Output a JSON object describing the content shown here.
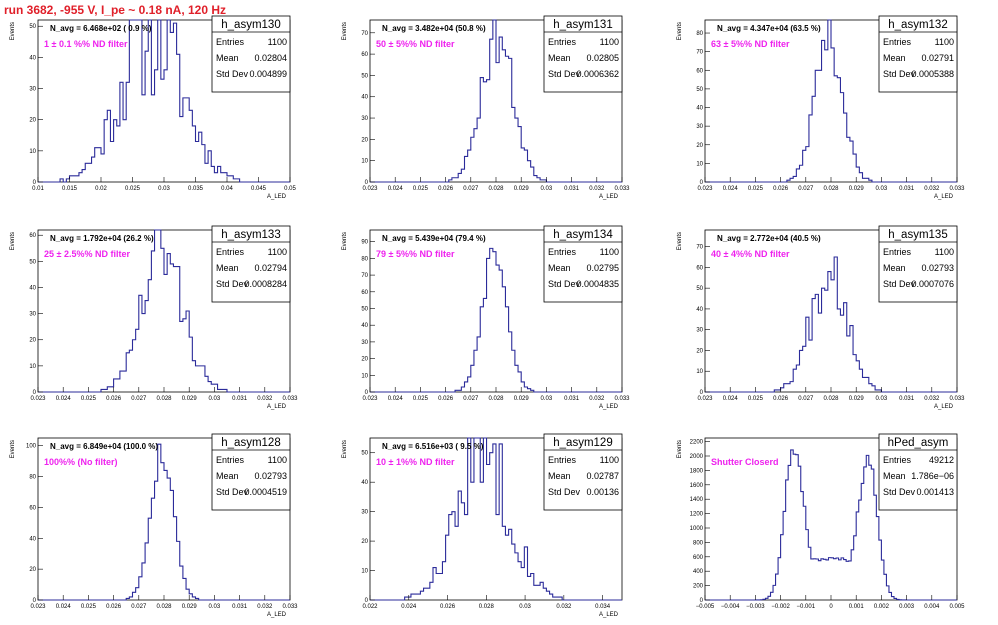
{
  "header": {
    "title": "run 3682,  -955 V, I_pe ~ 0.18 nA, 120 Hz"
  },
  "colors": {
    "histogram_line": "#2b2b9a",
    "filter_label": "#ee22ee",
    "title_text": "#e0202a"
  },
  "stat_labels": {
    "entries": "Entries",
    "mean": "Mean",
    "std_dev": "Std Dev"
  },
  "chart_data": [
    {
      "type": "histogram",
      "name": "h_asym130",
      "navg": "N_avg = 6.468e+02 ( 0.9 %)",
      "filter": "1 ± 0.1 %% ND filter",
      "entries": "1100",
      "mean": "0.02804",
      "std_dev": "0.004899",
      "ylabel": "Events",
      "xlabel": "A_LED",
      "xlim": [
        0.01,
        0.05
      ],
      "ylim": [
        0,
        52
      ],
      "xticks": [
        0.01,
        0.015,
        0.02,
        0.025,
        0.03,
        0.035,
        0.04,
        0.045,
        0.05
      ],
      "xtick_labels": [
        "0.01",
        "0.015",
        "0.02",
        "0.025",
        "0.03",
        "0.035",
        "0.04",
        "0.045",
        "0.05"
      ],
      "yticks": [
        0,
        10,
        20,
        30,
        40,
        50
      ],
      "ytick_labels": [
        "0",
        "10",
        "20",
        "30",
        "40",
        "50"
      ],
      "mu": 0.02804,
      "sigma": 0.004899,
      "peak": 49,
      "noise": 0.45,
      "seed": 11
    },
    {
      "type": "histogram",
      "name": "h_asym131",
      "navg": "N_avg = 3.482e+04 (50.8 %)",
      "filter": "50 ± 5%% ND filter",
      "entries": "1100",
      "mean": "0.02805",
      "std_dev": "0.0006362",
      "ylabel": "Events",
      "xlabel": "A_LED",
      "xlim": [
        0.023,
        0.033
      ],
      "ylim": [
        0,
        76
      ],
      "xticks": [
        0.023,
        0.024,
        0.025,
        0.026,
        0.027,
        0.028,
        0.029,
        0.03,
        0.031,
        0.032,
        0.033
      ],
      "xtick_labels": [
        "0.023",
        "0.024",
        "0.025",
        "0.026",
        "0.027",
        "0.028",
        "0.029",
        "0.03",
        "0.031",
        "0.032",
        "0.033"
      ],
      "yticks": [
        0,
        10,
        20,
        30,
        40,
        50,
        60,
        70
      ],
      "ytick_labels": [
        "0",
        "10",
        "20",
        "30",
        "40",
        "50",
        "60",
        "70"
      ],
      "mu": 0.02805,
      "sigma": 0.0006362,
      "peak": 68,
      "noise": 0.2,
      "seed": 23
    },
    {
      "type": "histogram",
      "name": "h_asym132",
      "navg": "N_avg = 4.347e+04 (63.5 %)",
      "filter": "63 ± 5%% ND filter",
      "entries": "1100",
      "mean": "0.02791",
      "std_dev": "0.0005388",
      "ylabel": "Events",
      "xlabel": "A_LED",
      "xlim": [
        0.023,
        0.033
      ],
      "ylim": [
        0,
        87
      ],
      "xticks": [
        0.023,
        0.024,
        0.025,
        0.026,
        0.027,
        0.028,
        0.029,
        0.03,
        0.031,
        0.032,
        0.033
      ],
      "xtick_labels": [
        "0.023",
        "0.024",
        "0.025",
        "0.026",
        "0.027",
        "0.028",
        "0.029",
        "0.03",
        "0.031",
        "0.032",
        "0.033"
      ],
      "yticks": [
        0,
        10,
        20,
        30,
        40,
        50,
        60,
        70,
        80
      ],
      "ytick_labels": [
        "0",
        "10",
        "20",
        "30",
        "40",
        "50",
        "60",
        "70",
        "80"
      ],
      "mu": 0.02791,
      "sigma": 0.0005388,
      "peak": 80,
      "noise": 0.18,
      "seed": 37
    },
    {
      "type": "histogram",
      "name": "h_asym133",
      "navg": "N_avg = 1.792e+04 (26.2 %)",
      "filter": "25 ± 2.5%% ND filter",
      "entries": "1100",
      "mean": "0.02794",
      "std_dev": "0.0008284",
      "ylabel": "Events",
      "xlabel": "A_LED",
      "xlim": [
        0.023,
        0.033
      ],
      "ylim": [
        0,
        62
      ],
      "xticks": [
        0.023,
        0.024,
        0.025,
        0.026,
        0.027,
        0.028,
        0.029,
        0.03,
        0.031,
        0.032,
        0.033
      ],
      "xtick_labels": [
        "0.023",
        "0.024",
        "0.025",
        "0.026",
        "0.027",
        "0.028",
        "0.029",
        "0.03",
        "0.031",
        "0.032",
        "0.033"
      ],
      "yticks": [
        0,
        10,
        20,
        30,
        40,
        50,
        60
      ],
      "ytick_labels": [
        "0",
        "10",
        "20",
        "30",
        "40",
        "50",
        "60"
      ],
      "mu": 0.02794,
      "sigma": 0.0008284,
      "peak": 53,
      "noise": 0.3,
      "seed": 41
    },
    {
      "type": "histogram",
      "name": "h_asym134",
      "navg": "N_avg = 5.439e+04 (79.4 %)",
      "filter": "79 ± 5%% ND filter",
      "entries": "1100",
      "mean": "0.02795",
      "std_dev": "0.0004835",
      "ylabel": "Events",
      "xlabel": "A_LED",
      "xlim": [
        0.023,
        0.033
      ],
      "ylim": [
        0,
        97
      ],
      "xticks": [
        0.023,
        0.024,
        0.025,
        0.026,
        0.027,
        0.028,
        0.029,
        0.03,
        0.031,
        0.032,
        0.033
      ],
      "xtick_labels": [
        "0.023",
        "0.024",
        "0.025",
        "0.026",
        "0.027",
        "0.028",
        "0.029",
        "0.03",
        "0.031",
        "0.032",
        "0.033"
      ],
      "yticks": [
        0,
        10,
        20,
        30,
        40,
        50,
        60,
        70,
        80,
        90
      ],
      "ytick_labels": [
        "0",
        "10",
        "20",
        "30",
        "40",
        "50",
        "60",
        "70",
        "80",
        "90"
      ],
      "mu": 0.02795,
      "sigma": 0.0004835,
      "peak": 88,
      "noise": 0.12,
      "seed": 53
    },
    {
      "type": "histogram",
      "name": "h_asym135",
      "navg": "N_avg = 2.772e+04 (40.5 %)",
      "filter": "40 ± 4%% ND filter",
      "entries": "1100",
      "mean": "0.02793",
      "std_dev": "0.0007076",
      "ylabel": "Events",
      "xlabel": "A_LED",
      "xlim": [
        0.023,
        0.033
      ],
      "ylim": [
        0,
        78
      ],
      "xticks": [
        0.023,
        0.024,
        0.025,
        0.026,
        0.027,
        0.028,
        0.029,
        0.03,
        0.031,
        0.032,
        0.033
      ],
      "xtick_labels": [
        "0.023",
        "0.024",
        "0.025",
        "0.026",
        "0.027",
        "0.028",
        "0.029",
        "0.03",
        "0.031",
        "0.032",
        "0.033"
      ],
      "yticks": [
        0,
        10,
        20,
        30,
        40,
        50,
        60,
        70
      ],
      "ytick_labels": [
        "0",
        "10",
        "20",
        "30",
        "40",
        "50",
        "60",
        "70"
      ],
      "mu": 0.02793,
      "sigma": 0.0007076,
      "peak": 62,
      "noise": 0.3,
      "seed": 67
    },
    {
      "type": "histogram",
      "name": "h_asym128",
      "navg": "N_avg = 6.849e+04 (100.0 %)",
      "filter": "100%% (No filter)",
      "entries": "1100",
      "mean": "0.02793",
      "std_dev": "0.0004519",
      "ylabel": "Events",
      "xlabel": "A_LED",
      "xlim": [
        0.023,
        0.033
      ],
      "ylim": [
        0,
        105
      ],
      "xticks": [
        0.023,
        0.024,
        0.025,
        0.026,
        0.027,
        0.028,
        0.029,
        0.03,
        0.031,
        0.032,
        0.033
      ],
      "xtick_labels": [
        "0.023",
        "0.024",
        "0.025",
        "0.026",
        "0.027",
        "0.028",
        "0.029",
        "0.03",
        "0.031",
        "0.032",
        "0.033"
      ],
      "yticks": [
        0,
        20,
        40,
        60,
        80,
        100
      ],
      "ytick_labels": [
        "0",
        "20",
        "40",
        "60",
        "80",
        "100"
      ],
      "mu": 0.02793,
      "sigma": 0.0004519,
      "peak": 96,
      "noise": 0.1,
      "seed": 79
    },
    {
      "type": "histogram",
      "name": "h_asym129",
      "navg": "N_avg = 6.516e+03 ( 9.5 %)",
      "filter": "10 ± 1%% ND filter",
      "entries": "1100",
      "mean": "0.02787",
      "std_dev": "0.00136",
      "ylabel": "Events",
      "xlabel": "A_LED",
      "xlim": [
        0.022,
        0.035
      ],
      "ylim": [
        0,
        55
      ],
      "xticks": [
        0.022,
        0.024,
        0.026,
        0.028,
        0.03,
        0.032,
        0.034
      ],
      "xtick_labels": [
        "0.022",
        "0.024",
        "0.026",
        "0.028",
        "0.03",
        "0.032",
        "0.034"
      ],
      "yticks": [
        0,
        10,
        20,
        30,
        40,
        50
      ],
      "ytick_labels": [
        "0",
        "10",
        "20",
        "30",
        "40",
        "50"
      ],
      "mu": 0.02787,
      "sigma": 0.00136,
      "peak": 50,
      "noise": 0.35,
      "seed": 83
    },
    {
      "type": "histogram",
      "name": "hPed_asym",
      "navg": "",
      "filter": "Shutter Closerd",
      "entries": "49212",
      "mean": "1.786e−06",
      "std_dev": "0.001413",
      "ylabel": "Events",
      "xlabel": "",
      "xlim": [
        -0.005,
        0.005
      ],
      "ylim": [
        0,
        2250
      ],
      "xticks": [
        -0.005,
        -0.004,
        -0.003,
        -0.002,
        -0.001,
        0,
        0.001,
        0.002,
        0.003,
        0.004,
        0.005
      ],
      "xtick_labels": [
        "−0.005",
        "−0.004",
        "−0.003",
        "−0.002",
        "−0.001",
        "0",
        "0.001",
        "0.002",
        "0.003",
        "0.004",
        "0.005"
      ],
      "yticks": [
        0,
        200,
        400,
        600,
        800,
        1000,
        1200,
        1400,
        1600,
        1800,
        2000,
        2200
      ],
      "ytick_labels": [
        "0",
        "200",
        "400",
        "600",
        "800",
        "1000",
        "1200",
        "1400",
        "1600",
        "1800",
        "2000",
        "2200"
      ],
      "bimodal": true,
      "peaks": [
        -0.0015,
        0.0015
      ],
      "peak_heights": [
        2100,
        1950
      ],
      "baseline": 520,
      "seed": 97
    }
  ]
}
